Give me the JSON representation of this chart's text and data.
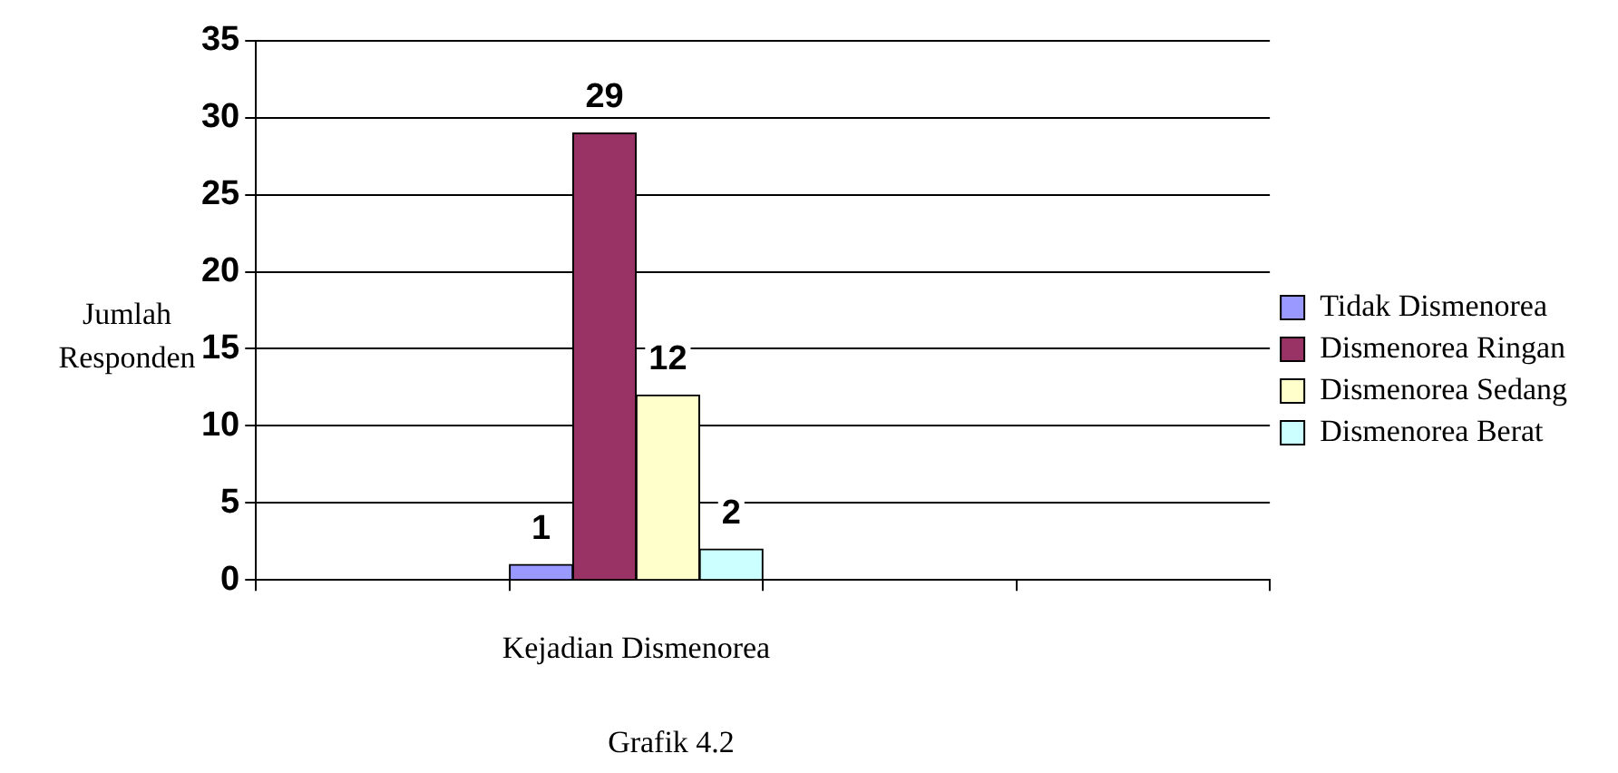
{
  "chart_data": {
    "type": "bar",
    "ylabel": "Jumlah Responden",
    "categories": [
      null,
      "Kejadian Dismenorea",
      null,
      null
    ],
    "series": [
      {
        "name": "Tidak Dismenorea",
        "color": "#9999ff",
        "values": [
          null,
          1,
          null,
          null
        ]
      },
      {
        "name": "Dismenorea Ringan",
        "color": "#993366",
        "values": [
          null,
          29,
          null,
          null
        ]
      },
      {
        "name": "Dismenorea Sedang",
        "color": "#ffffcc",
        "values": [
          null,
          12,
          null,
          null
        ]
      },
      {
        "name": "Dismenorea Berat",
        "color": "#ccffff",
        "values": [
          null,
          2,
          null,
          null
        ]
      }
    ],
    "ylim": [
      0,
      35
    ],
    "yticks": [
      0,
      5,
      10,
      15,
      20,
      25,
      30,
      35
    ],
    "grid": "y",
    "legend": "right",
    "data_labels": true,
    "annotations": [
      "Grafik 4.2"
    ]
  }
}
